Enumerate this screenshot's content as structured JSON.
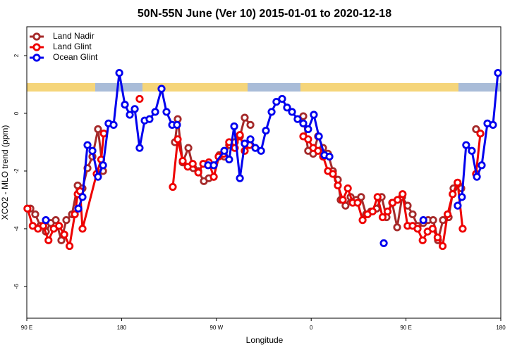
{
  "chart_data": {
    "type": "line",
    "title": "50N-55N June (Ver 10)   2015-01-01 to 2020-12-18",
    "x_label": "Longitude",
    "y_label": "XCO2 - MLO trend (ppm)",
    "xlim": [
      90,
      540
    ],
    "ylim": [
      -7.1,
      3
    ],
    "xticks": [
      {
        "value": 90,
        "label": "90 E"
      },
      180,
      {
        "value": 270,
        "label": "90 W"
      },
      {
        "value": 360,
        "label": "0"
      },
      {
        "value": 450,
        "label": "90 E"
      },
      {
        "value": 540,
        "label": "180"
      }
    ],
    "yticks": [
      2,
      0,
      -2,
      -4,
      -6
    ],
    "legend": "top-left",
    "series": [
      {
        "name": "Land Nadir",
        "color": "#a52a2a",
        "x": [
          93.4,
          98,
          102.8,
          108.1,
          112.8,
          117.5,
          122.8,
          127.5,
          132.9,
          138.3,
          142.9,
          147.6,
          152.3,
          157.6,
          162.4,
          200,
          230.6,
          233.3,
          238,
          243.4,
          248,
          252.8,
          258.1,
          262.8,
          267.5,
          272.8,
          277.5,
          282.1,
          287.5,
          292.3,
          296.9,
          302.3,
          330,
          352.5,
          357.1,
          361.9,
          366.5,
          371.3,
          375.9,
          380.6,
          385.3,
          388,
          392.6,
          397.4,
          402.8,
          407.4,
          412.1,
          416.8,
          422.1,
          426.9,
          431.5,
          436.9,
          441.6,
          446.3,
          451.6,
          456.3,
          461,
          466.4,
          471,
          475.8,
          480.4,
          485.1,
          490.5,
          495.1,
          499.9,
          502.5,
          510,
          516.5,
          520.6
        ],
        "values": [
          -3.3,
          -3.5,
          -3.9,
          -4.1,
          -3.8,
          -3.7,
          -4.4,
          -3.7,
          -3.5,
          -2.5,
          -2.6,
          -1.9,
          -1.5,
          -0.55,
          -2.0,
          null,
          -1.0,
          -0.2,
          -1.7,
          -1.2,
          -1.9,
          -2.0,
          -2.35,
          -2.25,
          -2.2,
          -1.45,
          -1.5,
          -1.1,
          -1.0,
          -0.8,
          -0.15,
          -0.4,
          null,
          -0.1,
          -1.3,
          -1.4,
          -0.8,
          -1.2,
          -1.4,
          -2.0,
          -2.3,
          -3.0,
          -3.2,
          -2.9,
          -3.0,
          -2.9,
          -3.5,
          -3.4,
          -3.3,
          -2.9,
          -3.6,
          -3.1,
          -3.95,
          -2.9,
          -3.2,
          -3.5,
          -3.9,
          -3.8,
          -3.7,
          -3.7,
          -4.4,
          -3.7,
          -3.6,
          -2.6,
          -2.5,
          -2.6,
          null,
          -0.55,
          -0.7
        ]
      },
      {
        "name": "Land Glint",
        "color": "#ee0000",
        "x": [
          90.6,
          95.6,
          100.6,
          105.6,
          110.6,
          115.6,
          120.6,
          125.6,
          130.6,
          135.6,
          138.3,
          140.6,
          142.9,
          156.3,
          160.6,
          163.1,
          180,
          197.1,
          215,
          228.6,
          233.3,
          238,
          242.8,
          247.5,
          252.8,
          257.5,
          262.8,
          267.5,
          272.1,
          276.9,
          282.1,
          287.5,
          292.3,
          296.9,
          301.6,
          330,
          352.5,
          357.1,
          361.9,
          366.5,
          371.3,
          375.9,
          380.6,
          385.3,
          390,
          394.8,
          399.4,
          404.1,
          408.8,
          413.5,
          418.3,
          423,
          427.8,
          432.5,
          437.3,
          442,
          446.8,
          451.5,
          456.3,
          461,
          465.8,
          470.5,
          475.3,
          480,
          484.8,
          489.5,
          494.3,
          499,
          503.8,
          510,
          516.5,
          520.6
        ],
        "values": [
          -3.3,
          -3.9,
          -4.0,
          -3.9,
          -4.4,
          -4.0,
          -3.9,
          -4.2,
          -4.6,
          -3.5,
          -2.8,
          -2.7,
          -4.0,
          -2.1,
          -1.6,
          -0.7,
          null,
          0.5,
          null,
          -2.55,
          -0.9,
          -1.65,
          -1.85,
          -1.75,
          -2.05,
          -1.75,
          -1.7,
          -2.2,
          -1.5,
          -1.4,
          -1.0,
          -1.2,
          -0.75,
          -1.3,
          -1.1,
          null,
          -0.8,
          -0.9,
          -1.2,
          -1.3,
          -1.5,
          -2.0,
          -2.1,
          -2.5,
          -3.0,
          -2.6,
          -3.1,
          -3.1,
          -3.7,
          -3.5,
          -3.4,
          -2.9,
          -3.6,
          -3.4,
          -3.1,
          -3.0,
          -2.8,
          -3.9,
          -3.9,
          -4.0,
          -4.4,
          -4.1,
          -4.0,
          -4.3,
          -4.6,
          -3.5,
          -2.8,
          -2.4,
          -4.0,
          null,
          -2.1,
          -0.7
        ]
      },
      {
        "name": "Ocean Glint",
        "color": "#0000ee",
        "x": [
          108.1,
          120,
          138.9,
          142.9,
          147.6,
          152.3,
          157.6,
          162.4,
          167.6,
          172.4,
          177.8,
          183.1,
          187.8,
          192.5,
          197.1,
          201.9,
          206.5,
          211.9,
          217.9,
          222.6,
          228,
          232.6,
          245,
          262.1,
          267.5,
          277.5,
          282.1,
          286.9,
          292.3,
          296.9,
          302.3,
          307,
          312.4,
          317,
          322.4,
          327,
          332.4,
          337.1,
          341.8,
          347.1,
          352.5,
          357.1,
          362.5,
          367.3,
          372.6,
          377.3,
          400,
          428.9,
          440,
          466.5,
          490,
          499.1,
          503.1,
          507.1,
          512.5,
          517.3,
          521.9,
          527.3,
          532.6,
          537.3
        ],
        "values": [
          -3.7,
          null,
          -3.3,
          -2.9,
          -1.1,
          -1.3,
          -2.2,
          -1.8,
          -0.35,
          -0.4,
          1.4,
          0.3,
          -0.05,
          0.15,
          -1.2,
          -0.25,
          -0.2,
          0.05,
          0.85,
          0.05,
          -0.4,
          -0.4,
          null,
          -1.8,
          -1.8,
          -1.3,
          -1.6,
          -0.45,
          -2.25,
          -1.05,
          -0.9,
          -1.2,
          -1.3,
          -0.6,
          0.05,
          0.4,
          0.5,
          0.2,
          0.05,
          -0.2,
          -0.35,
          -0.55,
          -0.05,
          -0.8,
          -1.45,
          -1.5,
          null,
          -4.5,
          null,
          -3.7,
          null,
          -3.2,
          -2.9,
          -1.1,
          -1.3,
          -2.2,
          -1.8,
          -0.35,
          -0.4,
          1.4
        ]
      }
    ]
  }
}
